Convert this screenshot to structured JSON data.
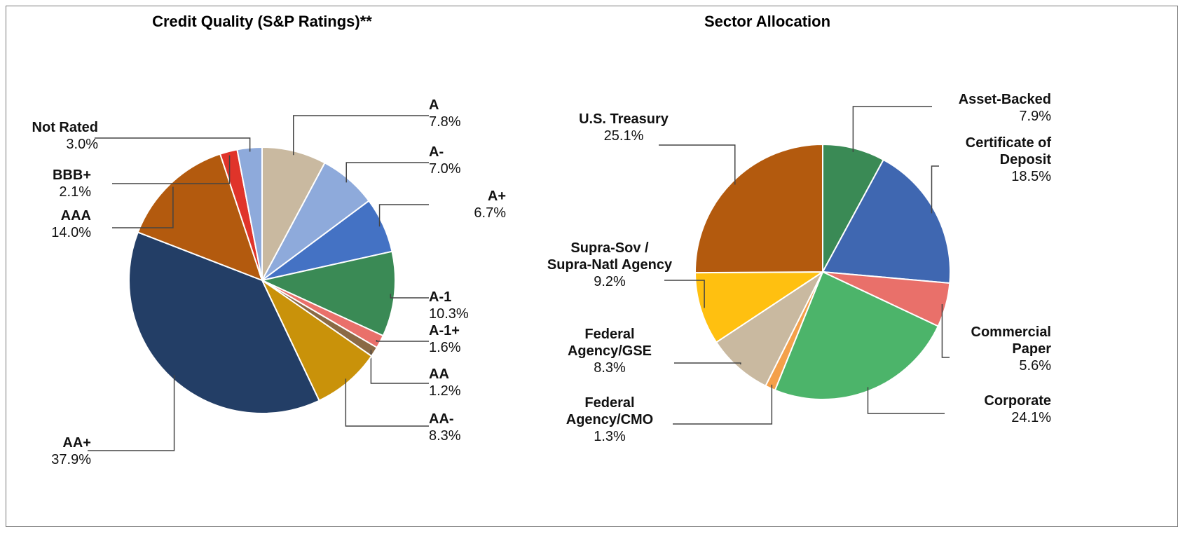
{
  "chart_data": [
    {
      "type": "pie",
      "title": "Credit Quality (S&P Ratings)**",
      "categories": [
        "A",
        "A-",
        "A+",
        "A-1",
        "A-1+",
        "AA",
        "AA-",
        "AA+",
        "AAA",
        "BBB+",
        "Not Rated"
      ],
      "values": [
        7.8,
        7.0,
        6.7,
        10.3,
        1.6,
        1.2,
        8.3,
        37.9,
        14.0,
        2.1,
        3.0
      ],
      "value_labels": [
        "7.8%",
        "7.0%",
        "6.7%",
        "10.3%",
        "1.6%",
        "1.2%",
        "8.3%",
        "37.9%",
        "14.0%",
        "2.1%",
        "3.0%"
      ],
      "colors": [
        "#c9b9a0",
        "#8eaadb",
        "#4472c4",
        "#3a8a55",
        "#e9706a",
        "#8b6a45",
        "#c9920a",
        "#233e66",
        "#b35a0e",
        "#e0342a",
        "#8eaadb"
      ]
    },
    {
      "type": "pie",
      "title": "Sector Allocation",
      "categories": [
        "Asset-Backed",
        "Certificate of Deposit",
        "Commercial Paper",
        "Corporate",
        "Federal Agency/CMO",
        "Federal Agency/GSE",
        "Supra-Sov / Supra-Natl Agency",
        "U.S. Treasury"
      ],
      "values": [
        7.9,
        18.5,
        5.6,
        24.1,
        1.3,
        8.3,
        9.2,
        25.1
      ],
      "value_labels": [
        "7.9%",
        "18.5%",
        "5.6%",
        "24.1%",
        "1.3%",
        "8.3%",
        "9.2%",
        "25.1%"
      ],
      "colors": [
        "#3a8a55",
        "#3f67b1",
        "#e9706a",
        "#4cb46a",
        "#f4a04a",
        "#c9b9a0",
        "#ffc010",
        "#b35a0e"
      ]
    }
  ]
}
